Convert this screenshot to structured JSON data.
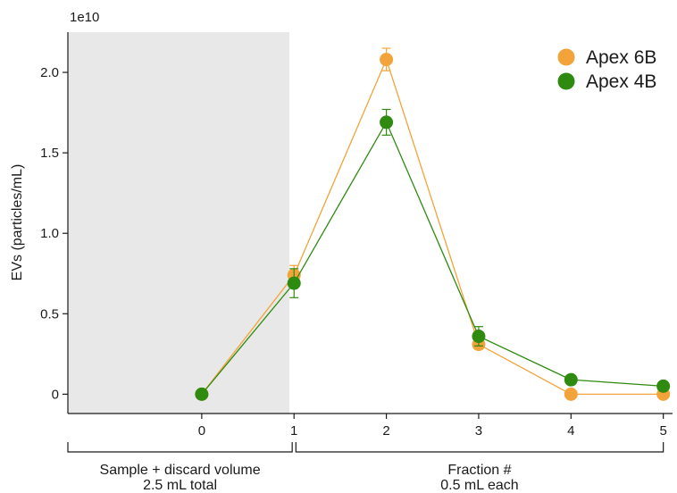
{
  "chart_data": {
    "type": "line",
    "ylabel": "EVs (particles/mL)",
    "y_exponent_label": "1e10",
    "x": [
      0,
      1,
      2,
      3,
      4,
      5
    ],
    "x_ticks": [
      "0",
      "1",
      "2",
      "3",
      "4",
      "5"
    ],
    "y_ticks": [
      {
        "value": 0,
        "label": "0"
      },
      {
        "value": 0.5,
        "label": "0.5"
      },
      {
        "value": 1.0,
        "label": "1.0"
      },
      {
        "value": 1.5,
        "label": "1.5"
      },
      {
        "value": 2.0,
        "label": "2.0"
      }
    ],
    "xlim": [
      -1.45,
      5.1
    ],
    "ylim": [
      -0.12,
      2.25
    ],
    "y_scale_note": "values in units of 1e10",
    "shaded_x_range": [
      -1.45,
      0.95
    ],
    "shaded_color": "#e8e8e8",
    "legend_position": "top-right",
    "grid": false,
    "series": [
      {
        "name": "Apex 6B",
        "color": "#f2a43a",
        "values": [
          0.0,
          0.74,
          2.08,
          0.31,
          0.0,
          0.0
        ],
        "errors": [
          0.0,
          0.06,
          0.07,
          0.03,
          0.0,
          0.0
        ]
      },
      {
        "name": "Apex 4B",
        "color": "#2f8a10",
        "values": [
          0.0,
          0.69,
          1.69,
          0.36,
          0.09,
          0.05
        ],
        "errors": [
          0.0,
          0.09,
          0.08,
          0.06,
          0.0,
          0.0
        ]
      }
    ],
    "brackets": [
      {
        "x_from": -1.45,
        "x_to": 0.98,
        "line1": "Sample + discard volume",
        "line2": "2.5 mL total"
      },
      {
        "x_from": 1.02,
        "x_to": 5.0,
        "line1": "Fraction #",
        "line2": "0.5 mL each"
      }
    ]
  }
}
